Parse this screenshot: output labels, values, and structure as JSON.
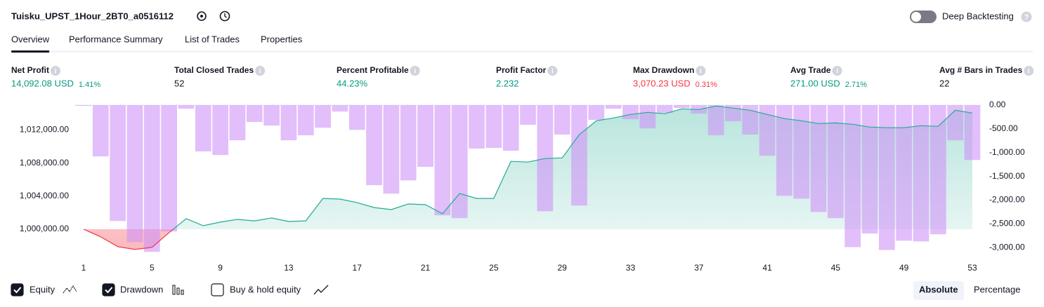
{
  "header": {
    "title": "Tuisku_UPST_1Hour_2BT0_a0516112",
    "deep_backtesting": "Deep Backtesting",
    "deep_backtesting_on": false
  },
  "tabs": [
    "Overview",
    "Performance Summary",
    "List of Trades",
    "Properties"
  ],
  "active_tab": 0,
  "metrics": [
    {
      "label": "Net Profit",
      "value": "14,092.08 USD",
      "percent": "1.41%",
      "color": "#089981"
    },
    {
      "label": "Total Closed Trades",
      "value": "52",
      "color": "#131722"
    },
    {
      "label": "Percent Profitable",
      "value": "44.23%",
      "color": "#089981"
    },
    {
      "label": "Profit Factor",
      "value": "2.232",
      "color": "#089981"
    },
    {
      "label": "Max Drawdown",
      "value": "3,070.23 USD",
      "percent": "0.31%",
      "color": "#f23645"
    },
    {
      "label": "Avg Trade",
      "value": "271.00 USD",
      "percent": "2.71%",
      "color": "#089981"
    },
    {
      "label": "Avg # Bars in Trades",
      "value": "22",
      "color": "#131722"
    }
  ],
  "chart_data": {
    "type": "equity",
    "x": [
      1,
      2,
      3,
      4,
      5,
      6,
      7,
      8,
      9,
      10,
      11,
      12,
      13,
      14,
      15,
      16,
      17,
      18,
      19,
      20,
      21,
      22,
      23,
      24,
      25,
      26,
      27,
      28,
      29,
      30,
      31,
      32,
      33,
      34,
      35,
      36,
      37,
      38,
      39,
      40,
      41,
      42,
      43,
      44,
      45,
      46,
      47,
      48,
      49,
      50,
      51,
      52,
      53
    ],
    "series": [
      {
        "name": "Equity",
        "color": "#22ab94",
        "negative_color": "#f23645",
        "checked": true,
        "values": [
          1000000,
          999070,
          997885,
          997550,
          997800,
          999580,
          1001270,
          1000420,
          1000850,
          1001180,
          1001010,
          1001350,
          1000930,
          1001010,
          1003720,
          1003640,
          1003210,
          1002620,
          1002370,
          1003050,
          1002960,
          1001860,
          1004310,
          1003720,
          1003720,
          1008200,
          1008120,
          1008540,
          1008630,
          1011420,
          1013110,
          1013450,
          1013870,
          1014130,
          1013960,
          1014550,
          1014470,
          1014890,
          1014640,
          1014380,
          1013870,
          1013370,
          1013110,
          1012770,
          1012850,
          1012690,
          1012350,
          1012270,
          1012270,
          1012520,
          1012430,
          1014380,
          1014040
        ]
      },
      {
        "name": "Drawdown",
        "color": "#ce93f7",
        "axis": "y2",
        "checked": true,
        "values": [
          -15,
          -1080,
          -2440,
          -2885,
          -3090,
          -2660,
          -75,
          -975,
          -1050,
          -740,
          -355,
          -430,
          -740,
          -635,
          -475,
          -135,
          -520,
          -1685,
          -1865,
          -1585,
          -1300,
          -2320,
          -2380,
          -915,
          -900,
          -960,
          -415,
          -2235,
          -620,
          -2115,
          -310,
          -75,
          -295,
          -490,
          -165,
          -60,
          -180,
          -635,
          -340,
          -620,
          -1065,
          -1910,
          -1970,
          -2250,
          -2380,
          -2990,
          -2705,
          -3050,
          -2855,
          -2870,
          -2720,
          -740,
          -1155
        ]
      }
    ],
    "xlim": [
      1,
      53
    ],
    "xticks": [
      1,
      5,
      9,
      13,
      17,
      21,
      25,
      29,
      33,
      37,
      41,
      45,
      49,
      53
    ],
    "ylim": [
      997200,
      1015000
    ],
    "yticks": [
      {
        "value": 1000000,
        "label": "1,000,000.00"
      },
      {
        "value": 1004000,
        "label": "1,004,000.00"
      },
      {
        "value": 1008000,
        "label": "1,008,000.00"
      },
      {
        "value": 1012000,
        "label": "1,012,000.00"
      }
    ],
    "y2lim": [
      -3100,
      0
    ],
    "y2ticks": [
      {
        "value": 0,
        "label": "0.00"
      },
      {
        "value": -500,
        "label": "-500.00"
      },
      {
        "value": -1000,
        "label": "-1,000.00"
      },
      {
        "value": -1500,
        "label": "-1,500.00"
      },
      {
        "value": -2000,
        "label": "-2,000.00"
      },
      {
        "value": -2500,
        "label": "-2,500.00"
      },
      {
        "value": -3000,
        "label": "-3,000.00"
      }
    ],
    "buy_hold": {
      "label": "Buy & hold equity",
      "checked": false
    }
  },
  "view_modes": [
    "Absolute",
    "Percentage"
  ],
  "active_view": 0
}
